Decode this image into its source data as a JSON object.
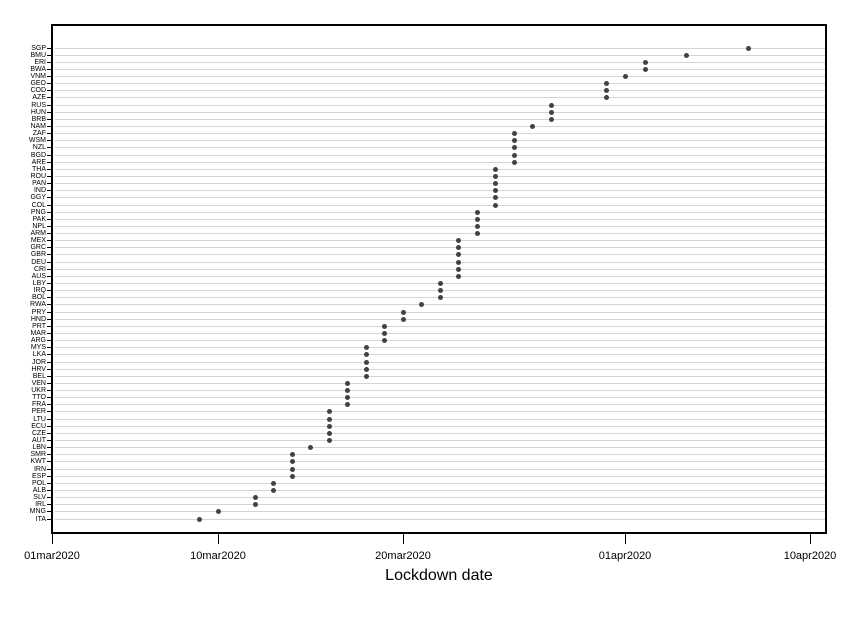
{
  "colors": {
    "dot": "#424242",
    "gridline": "#d4d4d4",
    "axis": "#000000",
    "background": "#ffffff"
  },
  "chart_data": {
    "type": "scatter",
    "subtype": "horizontal-dot-plot",
    "title": "",
    "xlabel": "Lockdown date",
    "ylabel": "",
    "grid": "horizontal-per-category",
    "legend": "none",
    "x_axis": {
      "tick_labels": [
        "01mar2020",
        "10mar2020",
        "20mar2020",
        "01apr2020",
        "10apr2020"
      ],
      "range_start": "01mar2020",
      "range_end": "10apr2020"
    },
    "points": [
      {
        "country": "SGP",
        "lockdown_date": "07apr2020"
      },
      {
        "country": "BMU",
        "lockdown_date": "04apr2020"
      },
      {
        "country": "ERI",
        "lockdown_date": "02apr2020"
      },
      {
        "country": "BWA",
        "lockdown_date": "02apr2020"
      },
      {
        "country": "VNM",
        "lockdown_date": "01apr2020"
      },
      {
        "country": "GEO",
        "lockdown_date": "31mar2020"
      },
      {
        "country": "COD",
        "lockdown_date": "31mar2020"
      },
      {
        "country": "AZE",
        "lockdown_date": "31mar2020"
      },
      {
        "country": "RUS",
        "lockdown_date": "28mar2020"
      },
      {
        "country": "HUN",
        "lockdown_date": "28mar2020"
      },
      {
        "country": "BRB",
        "lockdown_date": "28mar2020"
      },
      {
        "country": "NAM",
        "lockdown_date": "27mar2020"
      },
      {
        "country": "ZAF",
        "lockdown_date": "26mar2020"
      },
      {
        "country": "WSM",
        "lockdown_date": "26mar2020"
      },
      {
        "country": "NZL",
        "lockdown_date": "26mar2020"
      },
      {
        "country": "BGD",
        "lockdown_date": "26mar2020"
      },
      {
        "country": "ARE",
        "lockdown_date": "26mar2020"
      },
      {
        "country": "THA",
        "lockdown_date": "25mar2020"
      },
      {
        "country": "ROU",
        "lockdown_date": "25mar2020"
      },
      {
        "country": "PAN",
        "lockdown_date": "25mar2020"
      },
      {
        "country": "IND",
        "lockdown_date": "25mar2020"
      },
      {
        "country": "GGY",
        "lockdown_date": "25mar2020"
      },
      {
        "country": "COL",
        "lockdown_date": "25mar2020"
      },
      {
        "country": "PNG",
        "lockdown_date": "24mar2020"
      },
      {
        "country": "PAK",
        "lockdown_date": "24mar2020"
      },
      {
        "country": "NPL",
        "lockdown_date": "24mar2020"
      },
      {
        "country": "ARM",
        "lockdown_date": "24mar2020"
      },
      {
        "country": "MEX",
        "lockdown_date": "23mar2020"
      },
      {
        "country": "GRC",
        "lockdown_date": "23mar2020"
      },
      {
        "country": "GBR",
        "lockdown_date": "23mar2020"
      },
      {
        "country": "DEU",
        "lockdown_date": "23mar2020"
      },
      {
        "country": "CRI",
        "lockdown_date": "23mar2020"
      },
      {
        "country": "AUS",
        "lockdown_date": "23mar2020"
      },
      {
        "country": "LBY",
        "lockdown_date": "22mar2020"
      },
      {
        "country": "IRQ",
        "lockdown_date": "22mar2020"
      },
      {
        "country": "BOL",
        "lockdown_date": "22mar2020"
      },
      {
        "country": "RWA",
        "lockdown_date": "21mar2020"
      },
      {
        "country": "PRY",
        "lockdown_date": "20mar2020"
      },
      {
        "country": "HND",
        "lockdown_date": "20mar2020"
      },
      {
        "country": "PRT",
        "lockdown_date": "19mar2020"
      },
      {
        "country": "MAR",
        "lockdown_date": "19mar2020"
      },
      {
        "country": "ARG",
        "lockdown_date": "19mar2020"
      },
      {
        "country": "MYS",
        "lockdown_date": "18mar2020"
      },
      {
        "country": "LKA",
        "lockdown_date": "18mar2020"
      },
      {
        "country": "JOR",
        "lockdown_date": "18mar2020"
      },
      {
        "country": "HRV",
        "lockdown_date": "18mar2020"
      },
      {
        "country": "BEL",
        "lockdown_date": "18mar2020"
      },
      {
        "country": "VEN",
        "lockdown_date": "17mar2020"
      },
      {
        "country": "UKR",
        "lockdown_date": "17mar2020"
      },
      {
        "country": "TTO",
        "lockdown_date": "17mar2020"
      },
      {
        "country": "FRA",
        "lockdown_date": "17mar2020"
      },
      {
        "country": "PER",
        "lockdown_date": "16mar2020"
      },
      {
        "country": "LTU",
        "lockdown_date": "16mar2020"
      },
      {
        "country": "ECU",
        "lockdown_date": "16mar2020"
      },
      {
        "country": "CZE",
        "lockdown_date": "16mar2020"
      },
      {
        "country": "AUT",
        "lockdown_date": "16mar2020"
      },
      {
        "country": "LBN",
        "lockdown_date": "15mar2020"
      },
      {
        "country": "SMR",
        "lockdown_date": "14mar2020"
      },
      {
        "country": "KWT",
        "lockdown_date": "14mar2020"
      },
      {
        "country": "IRN",
        "lockdown_date": "14mar2020"
      },
      {
        "country": "ESP",
        "lockdown_date": "14mar2020"
      },
      {
        "country": "POL",
        "lockdown_date": "13mar2020"
      },
      {
        "country": "ALB",
        "lockdown_date": "13mar2020"
      },
      {
        "country": "SLV",
        "lockdown_date": "12mar2020"
      },
      {
        "country": "IRL",
        "lockdown_date": "12mar2020"
      },
      {
        "country": "MNG",
        "lockdown_date": "10mar2020"
      },
      {
        "country": "ITA",
        "lockdown_date": "09mar2020"
      }
    ]
  }
}
